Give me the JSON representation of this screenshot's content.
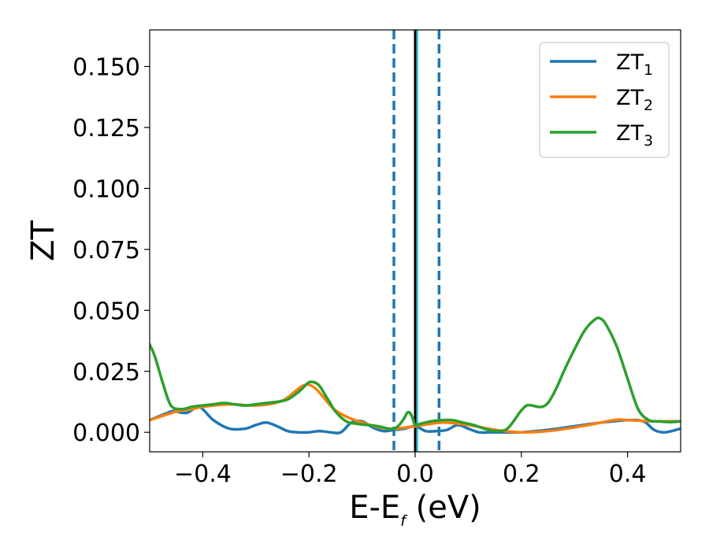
{
  "chart_data": {
    "type": "line",
    "xlabel_main": "E-E",
    "xlabel_sub": "f",
    "xlabel_unit": " (eV)",
    "ylabel": "ZT",
    "xlim": [
      -0.5,
      0.5
    ],
    "ylim": [
      -0.008,
      0.165
    ],
    "grid": false,
    "legend_position": "top-right",
    "x_ticks": [
      {
        "value": -0.4,
        "label": "−0.4"
      },
      {
        "value": -0.2,
        "label": "−0.2"
      },
      {
        "value": 0.0,
        "label": "0.0"
      },
      {
        "value": 0.2,
        "label": "0.2"
      },
      {
        "value": 0.4,
        "label": "0.4"
      }
    ],
    "y_ticks": [
      {
        "value": 0.0,
        "label": "0.000"
      },
      {
        "value": 0.025,
        "label": "0.025"
      },
      {
        "value": 0.05,
        "label": "0.050"
      },
      {
        "value": 0.075,
        "label": "0.075"
      },
      {
        "value": 0.1,
        "label": "0.100"
      },
      {
        "value": 0.125,
        "label": "0.125"
      },
      {
        "value": 0.15,
        "label": "0.150"
      }
    ],
    "vertical_lines": [
      {
        "x": -0.04,
        "style": "dashed",
        "color": "#1f77b4"
      },
      {
        "x": 0.045,
        "style": "dashed",
        "color": "#1f77b4"
      },
      {
        "x": 0.0,
        "style": "solid",
        "color": "#000000"
      },
      {
        "x": 0.004,
        "style": "solid",
        "color": "#17becf"
      }
    ],
    "series": [
      {
        "name": "ZT",
        "name_sub": "1",
        "color": "#1f77b4",
        "x": [
          -0.5,
          -0.46,
          -0.45,
          -0.43,
          -0.41,
          -0.4,
          -0.38,
          -0.35,
          -0.32,
          -0.3,
          -0.28,
          -0.26,
          -0.24,
          -0.22,
          -0.2,
          -0.18,
          -0.16,
          -0.14,
          -0.12,
          -0.1,
          -0.08,
          -0.06,
          -0.04,
          -0.02,
          0.0,
          0.02,
          0.04,
          0.06,
          0.08,
          0.1,
          0.12,
          0.14,
          0.16,
          0.18,
          0.2,
          0.25,
          0.3,
          0.35,
          0.4,
          0.43,
          0.45,
          0.47,
          0.5
        ],
        "y": [
          0.005,
          0.0085,
          0.0085,
          0.008,
          0.0105,
          0.0095,
          0.005,
          0.0015,
          0.0015,
          0.003,
          0.004,
          0.0025,
          0.0005,
          0.0,
          0.0,
          0.0005,
          0.0,
          0.0,
          0.004,
          0.0045,
          0.002,
          0.0005,
          0.001,
          0.0015,
          0.0025,
          0.0005,
          0.0005,
          0.001,
          0.003,
          0.0015,
          0.0,
          0.0,
          0.0,
          0.0,
          0.0,
          0.001,
          0.0025,
          0.004,
          0.005,
          0.0045,
          0.001,
          0.0,
          0.0015
        ]
      },
      {
        "name": "ZT",
        "name_sub": "2",
        "color": "#ff7f0e",
        "x": [
          -0.5,
          -0.45,
          -0.42,
          -0.4,
          -0.35,
          -0.3,
          -0.25,
          -0.2,
          -0.15,
          -0.1,
          -0.05,
          0.0,
          0.05,
          0.1,
          0.15,
          0.2,
          0.25,
          0.3,
          0.35,
          0.38,
          0.4,
          0.45,
          0.5
        ],
        "y": [
          0.005,
          0.0085,
          0.0095,
          0.0105,
          0.0115,
          0.011,
          0.013,
          0.0195,
          0.009,
          0.004,
          0.0015,
          0.0025,
          0.004,
          0.003,
          0.001,
          0.0,
          0.0005,
          0.002,
          0.004,
          0.0052,
          0.005,
          0.0045,
          0.0045
        ]
      },
      {
        "name": "ZT",
        "name_sub": "3",
        "color": "#2ca02c",
        "x": [
          -0.5,
          -0.49,
          -0.475,
          -0.46,
          -0.44,
          -0.42,
          -0.4,
          -0.38,
          -0.36,
          -0.34,
          -0.32,
          -0.3,
          -0.28,
          -0.26,
          -0.24,
          -0.22,
          -0.21,
          -0.2,
          -0.19,
          -0.18,
          -0.17,
          -0.16,
          -0.15,
          -0.13,
          -0.11,
          -0.09,
          -0.07,
          -0.05,
          -0.04,
          -0.03,
          -0.02,
          -0.015,
          -0.01,
          -0.005,
          0.0,
          0.01,
          0.03,
          0.05,
          0.07,
          0.09,
          0.11,
          0.13,
          0.15,
          0.17,
          0.18,
          0.19,
          0.2,
          0.21,
          0.22,
          0.23,
          0.24,
          0.25,
          0.26,
          0.27,
          0.28,
          0.3,
          0.32,
          0.34,
          0.35,
          0.36,
          0.38,
          0.4,
          0.42,
          0.44,
          0.46,
          0.48,
          0.5
        ],
        "y": [
          0.036,
          0.031,
          0.02,
          0.011,
          0.0095,
          0.0105,
          0.011,
          0.0115,
          0.012,
          0.0115,
          0.011,
          0.0115,
          0.012,
          0.0125,
          0.0135,
          0.0165,
          0.0185,
          0.0205,
          0.0205,
          0.019,
          0.0155,
          0.012,
          0.0085,
          0.0045,
          0.0035,
          0.003,
          0.0025,
          0.0015,
          0.0015,
          0.003,
          0.006,
          0.008,
          0.008,
          0.006,
          0.003,
          0.0035,
          0.0045,
          0.005,
          0.005,
          0.004,
          0.003,
          0.0015,
          0.0005,
          0.001,
          0.003,
          0.006,
          0.009,
          0.011,
          0.011,
          0.0105,
          0.0105,
          0.012,
          0.0155,
          0.02,
          0.025,
          0.034,
          0.042,
          0.0465,
          0.0465,
          0.044,
          0.035,
          0.022,
          0.0095,
          0.005,
          0.0045,
          0.0042,
          0.0045
        ]
      }
    ]
  }
}
